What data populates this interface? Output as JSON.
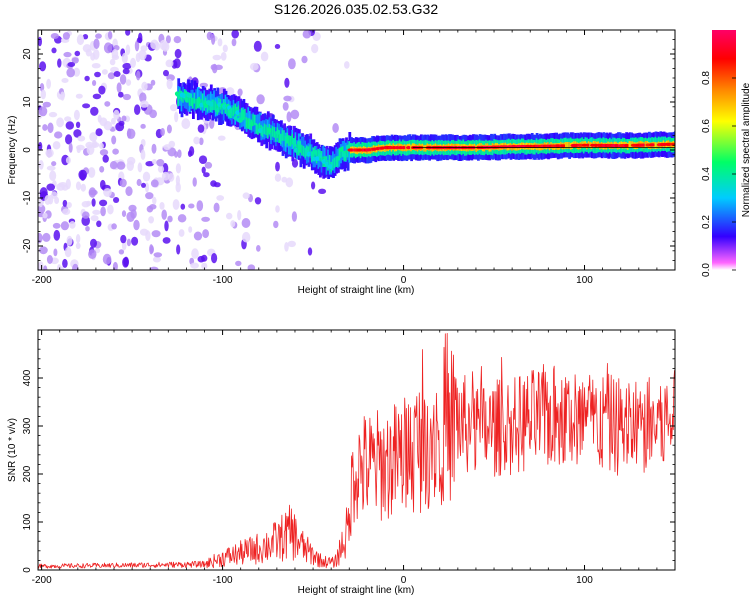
{
  "title": "S126.2026.035.02.53.G32",
  "chart_data": [
    {
      "type": "heatmap",
      "name": "spectrogram",
      "xlabel": "Height of straight line (km)",
      "ylabel": "Frequency (Hz)",
      "xlim": [
        -202,
        150
      ],
      "ylim": [
        -25,
        25
      ],
      "xticks": [
        -200,
        -100,
        0,
        100
      ],
      "yticks": [
        20,
        10,
        0,
        -10,
        -20
      ],
      "x_tick_labels": [
        "-200",
        "-100",
        "0",
        "100"
      ],
      "y_tick_labels": [
        "20",
        "10",
        "0",
        "-10",
        "-20"
      ],
      "colorbar": {
        "label": "Normalized spectral amplitude",
        "range": [
          0.0,
          1.0
        ],
        "ticks": [
          0.0,
          0.2,
          0.4,
          0.6,
          0.8
        ],
        "tick_labels": [
          "0.0",
          "0.2",
          "0.4",
          "0.6",
          "0.8"
        ],
        "colormap": [
          "#ff66ff",
          "#3300ff",
          "#00ccff",
          "#00ff66",
          "#ffff00",
          "#ff8800",
          "#ff0000",
          "#ff0066"
        ]
      },
      "ridge": {
        "x": [
          -125,
          -110,
          -100,
          -90,
          -80,
          -70,
          -60,
          -50,
          -45,
          -40,
          -35,
          -30,
          -20,
          -10,
          0,
          10,
          20,
          40,
          60,
          80,
          100,
          120,
          140,
          150
        ],
        "y": [
          11,
          10,
          9,
          7,
          5,
          3,
          1,
          -1,
          -2,
          -3,
          -1,
          0,
          0,
          0.5,
          0.5,
          0.5,
          0.5,
          0.5,
          0.7,
          0.8,
          1.0,
          0.9,
          1.1,
          1.2
        ]
      }
    },
    {
      "type": "line",
      "name": "snr",
      "xlabel": "Height of straight line (km)",
      "ylabel": "SNR (10 * v/v)",
      "xlim": [
        -202,
        150
      ],
      "ylim": [
        0,
        500
      ],
      "xticks": [
        -200,
        -100,
        0,
        100
      ],
      "yticks": [
        0,
        100,
        200,
        300,
        400
      ],
      "x_tick_labels": [
        "-200",
        "-100",
        "0",
        "100"
      ],
      "y_tick_labels": [
        "0",
        "100",
        "200",
        "300",
        "400"
      ],
      "line_color": "#ee2222",
      "trend": {
        "x": [
          -202,
          -150,
          -110,
          -100,
          -90,
          -80,
          -70,
          -62,
          -55,
          -45,
          -38,
          -30,
          -28,
          -20,
          -10,
          0,
          10,
          20,
          30,
          40,
          60,
          80,
          100,
          120,
          135,
          150
        ],
        "y": [
          8,
          10,
          12,
          25,
          35,
          45,
          60,
          80,
          45,
          18,
          15,
          90,
          210,
          215,
          220,
          235,
          265,
          300,
          310,
          290,
          300,
          320,
          310,
          300,
          300,
          310
        ]
      }
    }
  ]
}
